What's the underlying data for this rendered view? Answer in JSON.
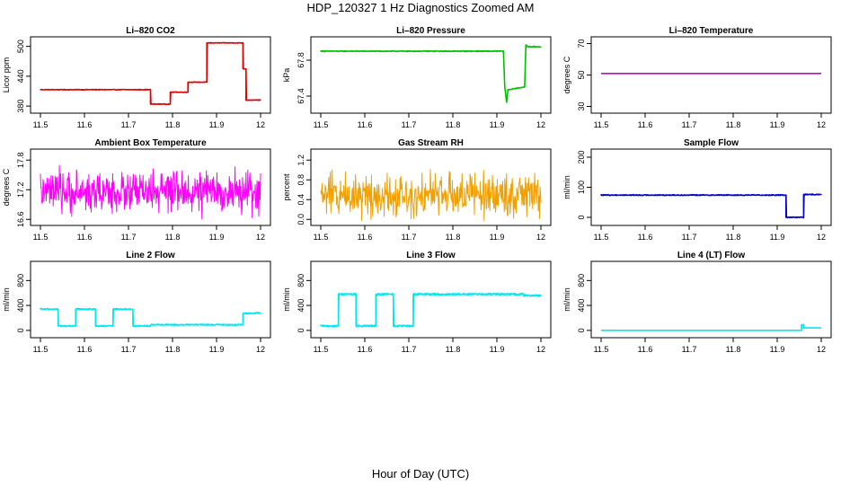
{
  "title": "HDP_120327  1 Hz Diagnostics Zoomed AM",
  "xlabel": "Hour of Day (UTC)",
  "chart_data": [
    {
      "type": "line",
      "title": "Li–820 CO2",
      "ylabel": "Licor ppm",
      "xlim": [
        11.5,
        12.0
      ],
      "ylim": [
        373,
        512
      ],
      "xticks": [
        11.5,
        11.6,
        11.7,
        11.8,
        11.9,
        12.0
      ],
      "yticks": [
        380,
        440,
        500
      ],
      "color": "#e00000",
      "noise": 0.6,
      "series": [
        {
          "x": [
            11.5,
            11.75,
            11.75,
            11.795,
            11.795,
            11.835,
            11.835,
            11.878,
            11.878,
            11.96,
            11.96,
            11.967,
            11.967,
            12.0
          ],
          "values": [
            413,
            413,
            384,
            384,
            408,
            408,
            428,
            428,
            507,
            507,
            455,
            455,
            392,
            392
          ]
        }
      ]
    },
    {
      "type": "line",
      "title": "Li–820 Pressure",
      "ylabel": "kPa",
      "xlim": [
        11.5,
        12.0
      ],
      "ylim": [
        67.25,
        68.02
      ],
      "xticks": [
        11.5,
        11.6,
        11.7,
        11.8,
        11.9,
        12.0
      ],
      "yticks": [
        67.4,
        67.8
      ],
      "ytick_labels": [
        "67.4",
        "67.8"
      ],
      "color": "#00c000",
      "noise": 0.004,
      "series": [
        {
          "x": [
            11.5,
            11.915,
            11.918,
            11.922,
            11.925,
            11.96,
            11.963,
            11.966,
            11.97,
            12.0
          ],
          "values": [
            67.9,
            67.9,
            67.5,
            67.33,
            67.47,
            67.5,
            67.5,
            67.97,
            67.95,
            67.95
          ]
        }
      ]
    },
    {
      "type": "line",
      "title": "Li–820 Temperature",
      "ylabel": "degrees C",
      "xlim": [
        11.5,
        12.0
      ],
      "ylim": [
        28,
        72
      ],
      "xticks": [
        11.5,
        11.6,
        11.7,
        11.8,
        11.9,
        12.0
      ],
      "yticks": [
        30,
        50,
        70
      ],
      "color": "#cc00cc",
      "noise": 0,
      "series": [
        {
          "x": [
            11.5,
            12.0
          ],
          "values": [
            51,
            51
          ]
        }
      ]
    },
    {
      "type": "line",
      "title": "Ambient Box Temperature",
      "ylabel": "degrees C",
      "xlim": [
        11.5,
        12.0
      ],
      "ylim": [
        16.55,
        17.95
      ],
      "xticks": [
        11.5,
        11.6,
        11.7,
        11.8,
        11.9,
        12.0
      ],
      "yticks": [
        16.6,
        17.2,
        17.8
      ],
      "ytick_labels": [
        "16.6",
        "17.2",
        "17.8"
      ],
      "color": "#ff00ff",
      "noise": 0,
      "random": {
        "mean": 17.15,
        "sd": 0.2
      },
      "series": [
        {
          "x": [
            11.5,
            12.0
          ],
          "values": [
            17.15,
            17.15
          ]
        }
      ]
    },
    {
      "type": "line",
      "title": "Gas Stream RH",
      "ylabel": "percent",
      "xlim": [
        11.5,
        12.0
      ],
      "ylim": [
        -0.05,
        1.35
      ],
      "xticks": [
        11.5,
        11.6,
        11.7,
        11.8,
        11.9,
        12.0
      ],
      "yticks": [
        0.0,
        0.4,
        0.8,
        1.2
      ],
      "ytick_labels": [
        "0.0",
        "0.4",
        "0.8",
        "1.2"
      ],
      "color": "#f0a000",
      "noise": 0,
      "random": {
        "mean": 0.5,
        "sd": 0.22
      },
      "series": [
        {
          "x": [
            11.5,
            12.0
          ],
          "values": [
            0.5,
            0.5
          ]
        }
      ]
    },
    {
      "type": "line",
      "title": "Sample Flow",
      "ylabel": "ml/min",
      "xlim": [
        11.5,
        12.0
      ],
      "ylim": [
        -15,
        215
      ],
      "xticks": [
        11.5,
        11.6,
        11.7,
        11.8,
        11.9,
        12.0
      ],
      "yticks": [
        0,
        100,
        200
      ],
      "color": "#0000cc",
      "noise": 1.5,
      "series": [
        {
          "x": [
            11.5,
            11.92,
            11.92,
            11.96,
            11.96,
            12.0
          ],
          "values": [
            74,
            74,
            0,
            0,
            76,
            76
          ]
        }
      ]
    },
    {
      "type": "line",
      "title": "Line 2 Flow",
      "ylabel": "ml/min",
      "xlim": [
        11.5,
        12.0
      ],
      "ylim": [
        -60,
        1050
      ],
      "xticks": [
        11.5,
        11.6,
        11.7,
        11.8,
        11.9,
        12.0
      ],
      "yticks": [
        0,
        400,
        800
      ],
      "color": "#00e8f0",
      "noise": 10,
      "series": [
        {
          "x": [
            11.5,
            11.54,
            11.54,
            11.58,
            11.58,
            11.625,
            11.625,
            11.665,
            11.665,
            11.71,
            11.71,
            11.75,
            11.75,
            11.96,
            11.96,
            12.0
          ],
          "values": [
            340,
            340,
            70,
            70,
            340,
            340,
            70,
            70,
            340,
            340,
            70,
            70,
            90,
            90,
            270,
            280
          ]
        }
      ]
    },
    {
      "type": "line",
      "title": "Line 3 Flow",
      "ylabel": "ml/min",
      "xlim": [
        11.5,
        12.0
      ],
      "ylim": [
        -60,
        1050
      ],
      "xticks": [
        11.5,
        11.6,
        11.7,
        11.8,
        11.9,
        12.0
      ],
      "yticks": [
        0,
        400,
        800
      ],
      "color": "#00e8f0",
      "noise": 15,
      "series": [
        {
          "x": [
            11.5,
            11.54,
            11.54,
            11.58,
            11.58,
            11.625,
            11.625,
            11.665,
            11.665,
            11.71,
            11.71,
            11.96,
            11.96,
            12.0
          ],
          "values": [
            70,
            70,
            580,
            580,
            70,
            70,
            580,
            580,
            70,
            70,
            580,
            580,
            560,
            560
          ]
        }
      ]
    },
    {
      "type": "line",
      "title": "Line 4 (LT) Flow",
      "ylabel": "ml/min",
      "xlim": [
        11.5,
        12.0
      ],
      "ylim": [
        -60,
        1050
      ],
      "xticks": [
        11.5,
        11.6,
        11.7,
        11.8,
        11.9,
        12.0
      ],
      "yticks": [
        0,
        400,
        800
      ],
      "color": "#00e8f0",
      "noise": 0,
      "series": [
        {
          "x": [
            11.5,
            11.955,
            11.955,
            11.96,
            11.96,
            12.0
          ],
          "values": [
            0,
            0,
            90,
            90,
            40,
            40
          ]
        }
      ]
    }
  ]
}
